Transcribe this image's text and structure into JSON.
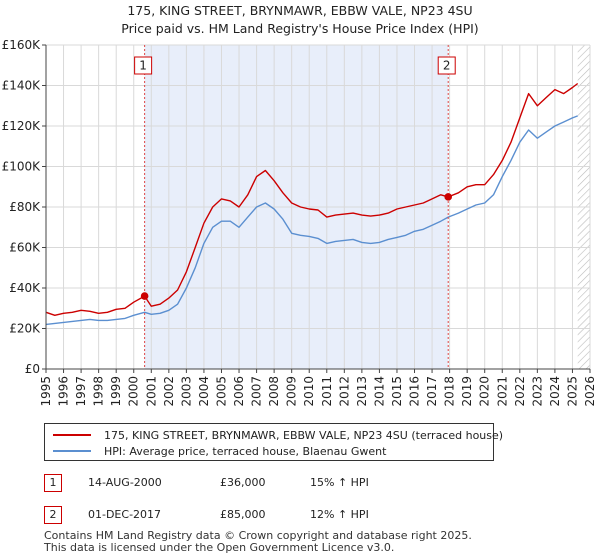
{
  "title_line1": "175, KING STREET, BRYNMAWR, EBBW VALE, NP23 4SU",
  "title_line2": "Price paid vs. HM Land Registry's House Price Index (HPI)",
  "chart_data": {
    "type": "line",
    "title": "175, KING STREET, BRYNMAWR, EBBW VALE, NP23 4SU — Price paid vs. HM Land Registry's House Price Index (HPI)",
    "xlabel": "",
    "ylabel": "",
    "xlim": [
      1995,
      2026
    ],
    "ylim": [
      0,
      160000
    ],
    "x_ticks": [
      1995,
      1996,
      1997,
      1998,
      1999,
      2000,
      2001,
      2002,
      2003,
      2004,
      2005,
      2006,
      2007,
      2008,
      2009,
      2010,
      2011,
      2012,
      2013,
      2014,
      2015,
      2016,
      2017,
      2018,
      2019,
      2020,
      2021,
      2022,
      2023,
      2024,
      2025,
      2026
    ],
    "y_ticks": [
      {
        "value": 0,
        "label": "£0"
      },
      {
        "value": 20000,
        "label": "£20K"
      },
      {
        "value": 40000,
        "label": "£40K"
      },
      {
        "value": 60000,
        "label": "£60K"
      },
      {
        "value": 80000,
        "label": "£80K"
      },
      {
        "value": 100000,
        "label": "£100K"
      },
      {
        "value": 120000,
        "label": "£120K"
      },
      {
        "value": 140000,
        "label": "£140K"
      },
      {
        "value": 160000,
        "label": "£160K"
      }
    ],
    "shaded_period": [
      2000.62,
      2017.92
    ],
    "hatched_from": 2025.3,
    "series": [
      {
        "name": "175, KING STREET, BRYNMAWR, EBBW VALE, NP23 4SU (terraced house)",
        "color": "#cc0000",
        "x": [
          1995.0,
          1995.5,
          1996.0,
          1996.5,
          1997.0,
          1997.5,
          1998.0,
          1998.5,
          1999.0,
          1999.5,
          2000.0,
          2000.62,
          2001.0,
          2001.5,
          2002.0,
          2002.5,
          2003.0,
          2003.5,
          2004.0,
          2004.5,
          2005.0,
          2005.5,
          2006.0,
          2006.5,
          2007.0,
          2007.5,
          2008.0,
          2008.5,
          2009.0,
          2009.5,
          2010.0,
          2010.5,
          2011.0,
          2011.5,
          2012.0,
          2012.5,
          2013.0,
          2013.5,
          2014.0,
          2014.5,
          2015.0,
          2015.5,
          2016.0,
          2016.5,
          2017.0,
          2017.5,
          2017.92,
          2018.5,
          2019.0,
          2019.5,
          2020.0,
          2020.5,
          2021.0,
          2021.5,
          2022.0,
          2022.5,
          2023.0,
          2023.5,
          2024.0,
          2024.5,
          2025.0,
          2025.3
        ],
        "values": [
          28000,
          26500,
          27500,
          28000,
          29000,
          28500,
          27500,
          28000,
          29500,
          30000,
          33000,
          36000,
          31000,
          32000,
          35000,
          39000,
          48000,
          60000,
          72000,
          80000,
          84000,
          83000,
          80000,
          86000,
          95000,
          98000,
          93000,
          87000,
          82000,
          80000,
          79000,
          78500,
          75000,
          76000,
          76500,
          77000,
          76000,
          75500,
          76000,
          77000,
          79000,
          80000,
          81000,
          82000,
          84000,
          86000,
          85000,
          87000,
          90000,
          91000,
          91000,
          96000,
          103000,
          112000,
          124000,
          136000,
          130000,
          134000,
          138000,
          136000,
          139000,
          141000
        ]
      },
      {
        "name": "HPI: Average price, terraced house, Blaenau Gwent",
        "color": "#5b8fd0",
        "x": [
          1995.0,
          1995.5,
          1996.0,
          1996.5,
          1997.0,
          1997.5,
          1998.0,
          1998.5,
          1999.0,
          1999.5,
          2000.0,
          2000.62,
          2001.0,
          2001.5,
          2002.0,
          2002.5,
          2003.0,
          2003.5,
          2004.0,
          2004.5,
          2005.0,
          2005.5,
          2006.0,
          2006.5,
          2007.0,
          2007.5,
          2008.0,
          2008.5,
          2009.0,
          2009.5,
          2010.0,
          2010.5,
          2011.0,
          2011.5,
          2012.0,
          2012.5,
          2013.0,
          2013.5,
          2014.0,
          2014.5,
          2015.0,
          2015.5,
          2016.0,
          2016.5,
          2017.0,
          2017.5,
          2017.92,
          2018.5,
          2019.0,
          2019.5,
          2020.0,
          2020.5,
          2021.0,
          2021.5,
          2022.0,
          2022.5,
          2023.0,
          2023.5,
          2024.0,
          2024.5,
          2025.0,
          2025.3
        ],
        "values": [
          22000,
          22500,
          23000,
          23500,
          24000,
          24500,
          24000,
          24000,
          24500,
          25000,
          26500,
          28000,
          27000,
          27500,
          29000,
          32000,
          40000,
          50000,
          62000,
          70000,
          73000,
          73000,
          70000,
          75000,
          80000,
          82000,
          79000,
          74000,
          67000,
          66000,
          65500,
          64500,
          62000,
          63000,
          63500,
          64000,
          62500,
          62000,
          62500,
          64000,
          65000,
          66000,
          68000,
          69000,
          71000,
          73000,
          75000,
          77000,
          79000,
          81000,
          82000,
          86000,
          95000,
          103000,
          112000,
          118000,
          114000,
          117000,
          120000,
          122000,
          124000,
          125000
        ]
      }
    ],
    "markers": [
      {
        "label": "1",
        "x": 2000.62,
        "value": 36000
      },
      {
        "label": "2",
        "x": 2017.92,
        "value": 85000
      }
    ]
  },
  "legend": {
    "items": [
      {
        "label": "175, KING STREET, BRYNMAWR, EBBW VALE, NP23 4SU (terraced house)",
        "color": "#cc0000"
      },
      {
        "label": "HPI: Average price, terraced house, Blaenau Gwent",
        "color": "#5b8fd0"
      }
    ]
  },
  "transactions": [
    {
      "badge": "1",
      "date": "14-AUG-2000",
      "price": "£36,000",
      "hpi": "15% ↑ HPI"
    },
    {
      "badge": "2",
      "date": "01-DEC-2017",
      "price": "£85,000",
      "hpi": "12% ↑ HPI"
    }
  ],
  "footer": {
    "line1": "Contains HM Land Registry data © Crown copyright and database right 2025.",
    "line2": "This data is licensed under the Open Government Licence v3.0."
  }
}
